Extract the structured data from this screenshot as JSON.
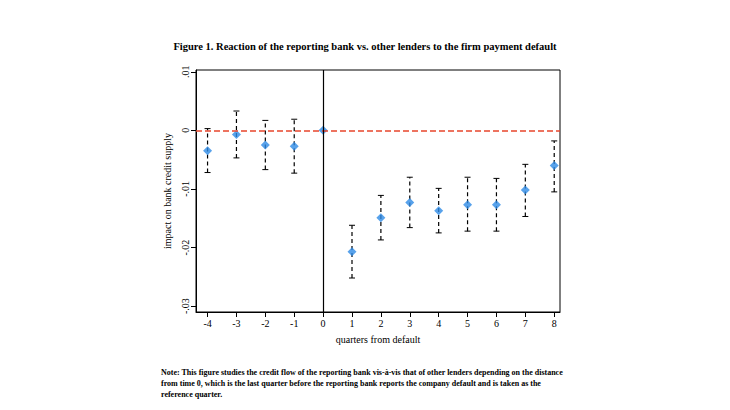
{
  "chart_data": {
    "type": "scatter",
    "title": "Figure 1. Reaction of the reporting bank vs. other lenders to the firm payment default",
    "x_label": "quarters from default",
    "y_label": "impact on bank credit supply",
    "note": "Note: This figure studies the credit flow of the reporting bank vis-à-vis that of other lenders depending on the distance from time 0, which is the last quarter before the reporting bank reports the company default and is taken as the reference quarter.",
    "x": [
      -4,
      -3,
      -2,
      -1,
      0,
      1,
      2,
      3,
      4,
      5,
      6,
      7,
      8
    ],
    "values": [
      -0.0035,
      -0.0007,
      -0.0025,
      -0.0027,
      0,
      -0.0207,
      -0.0149,
      -0.0123,
      -0.0137,
      -0.0127,
      -0.0127,
      -0.0102,
      -0.006
    ],
    "ci_low": [
      -0.0072,
      -0.0047,
      -0.0067,
      -0.0073,
      null,
      -0.0252,
      -0.0187,
      -0.0166,
      -0.0175,
      -0.0172,
      -0.0172,
      -0.0147,
      -0.0105
    ],
    "ci_high": [
      0.0003,
      0.0033,
      0.0017,
      0.0019,
      null,
      -0.0162,
      -0.0111,
      -0.008,
      -0.0099,
      -0.008,
      -0.0082,
      -0.0058,
      -0.0018
    ],
    "color": "#2e8be6",
    "marker": "diamond",
    "error_bar_line_style": "dashed",
    "reference_lines": [
      {
        "axis": "y",
        "value": 0,
        "color": "#e8452c",
        "line_style": "dashed"
      },
      {
        "axis": "x",
        "value": 0,
        "color": "#000000",
        "line_style": "solid"
      }
    ],
    "xlim": [
      -4.4,
      8.2
    ],
    "xticks": [
      -4,
      -3,
      -2,
      -1,
      0,
      1,
      2,
      3,
      4,
      5,
      6,
      7,
      8
    ],
    "ylim": [
      -0.031,
      0.0103
    ],
    "yticks": [
      {
        "value": -0.03,
        "label": "-.03"
      },
      {
        "value": -0.02,
        "label": "-.02"
      },
      {
        "value": -0.01,
        "label": "-.01"
      },
      0,
      {
        "value": 0.01,
        "label": ".01"
      }
    ],
    "grid": false
  }
}
